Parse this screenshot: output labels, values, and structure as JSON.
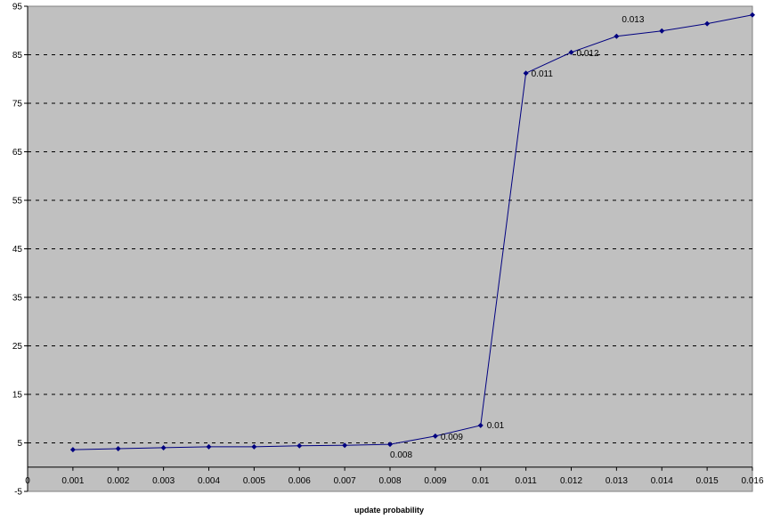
{
  "chart_data": {
    "type": "line",
    "xlabel": "update probability",
    "ylabel": "",
    "xlim": [
      0,
      0.016
    ],
    "ylim": [
      -5,
      95
    ],
    "x_ticks": [
      "0",
      "0.001",
      "0.002",
      "0.003",
      "0.004",
      "0.005",
      "0.006",
      "0.007",
      "0.008",
      "0.009",
      "0.01",
      "0.011",
      "0.012",
      "0.013",
      "0.014",
      "0.015",
      "0.016"
    ],
    "y_ticks": [
      "-5",
      "5",
      "15",
      "25",
      "35",
      "45",
      "55",
      "65",
      "75",
      "85",
      "95"
    ],
    "grid": "horizontal dashed",
    "series": [
      {
        "x": [
          0.001,
          0.002,
          0.003,
          0.004,
          0.005,
          0.006,
          0.007,
          0.008,
          0.009,
          0.01,
          0.011,
          0.012,
          0.013,
          0.014,
          0.015,
          0.016
        ],
        "y": [
          3.6,
          3.8,
          4.0,
          4.2,
          4.2,
          4.4,
          4.5,
          4.7,
          6.4,
          8.6,
          81.2,
          85.5,
          88.8,
          89.9,
          91.4,
          93.2
        ]
      }
    ],
    "annotations": [
      {
        "text": "0.008",
        "x": 0.008,
        "y": 4.7
      },
      {
        "text": "0.009",
        "x": 0.009,
        "y": 6.4
      },
      {
        "text": "0.01",
        "x": 0.01,
        "y": 8.6
      },
      {
        "text": "0.011",
        "x": 0.011,
        "y": 81.2
      },
      {
        "text": "0.012",
        "x": 0.012,
        "y": 85.5
      },
      {
        "text": "0.013",
        "x": 0.013,
        "y": 88.8
      }
    ],
    "colors": {
      "plot_background": "#c0c0c0",
      "series_line": "#000080",
      "grid_line": "#000000"
    }
  }
}
